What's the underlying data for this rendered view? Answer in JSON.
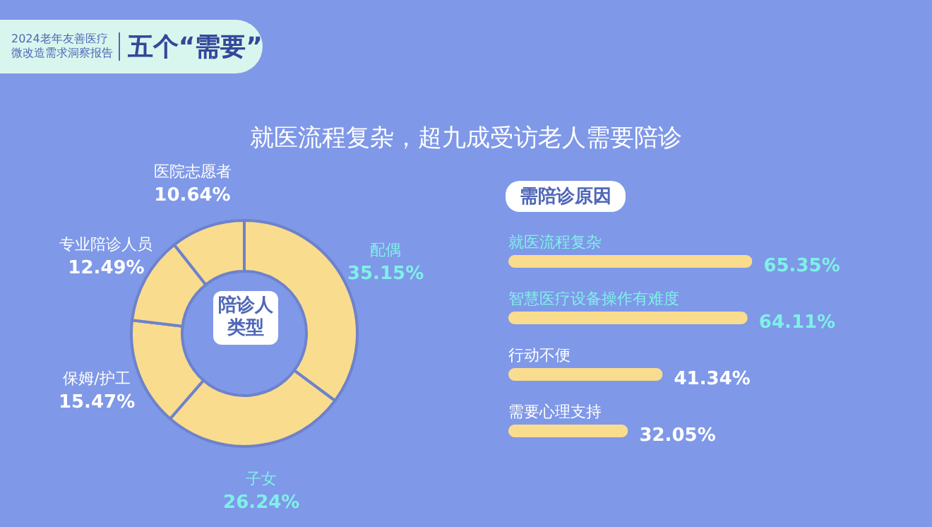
{
  "chart_data": [
    {
      "type": "donut",
      "title": "陪诊人类型",
      "annotations": [
        "2024老年友善医疗微改造需求洞察报告",
        "五个“需要”",
        "就医流程复杂，超九成受访老人需要陪诊"
      ],
      "categories": [
        "配偶",
        "子女",
        "保姆/护工",
        "专业陪诊人员",
        "医院志愿者"
      ],
      "values": [
        35.15,
        26.24,
        15.47,
        12.49,
        10.64
      ],
      "colors": [
        "#f9dc8e",
        "#f9dc8e",
        "#f9dc8e",
        "#f9dc8e",
        "#f9dc8e"
      ],
      "value_labels": [
        "35.15%",
        "26.24%",
        "15.47%",
        "12.49%",
        "10.64%"
      ]
    },
    {
      "type": "bar",
      "orientation": "horizontal",
      "title": "需陪诊原因",
      "categories": [
        "就医流程复杂",
        "智慧医疗设备操作有难度",
        "行动不便",
        "需要心理支持"
      ],
      "values": [
        65.35,
        64.11,
        41.34,
        32.05
      ],
      "color": "#f9dc8e",
      "value_labels": [
        "65.35%",
        "64.11%",
        "41.34%",
        "32.05%"
      ]
    }
  ]
}
